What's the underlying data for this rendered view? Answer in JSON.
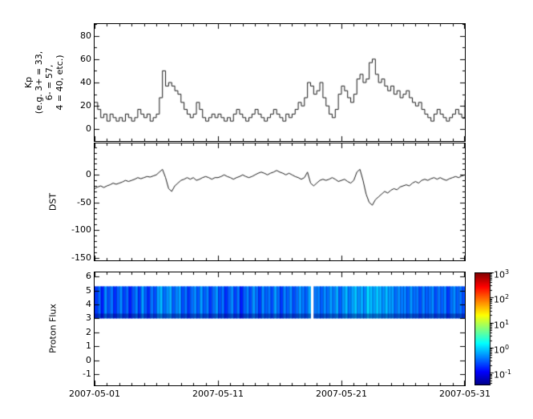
{
  "chart_data": {
    "x_axis": {
      "range_days": [
        1,
        31
      ],
      "tick_days": [
        1,
        11,
        21,
        31
      ],
      "tick_labels": [
        "2007-05-01",
        "2007-05-11",
        "2007-05-21",
        "2007-05-31"
      ],
      "minor_tick_every_days": 1,
      "sample_step_days": 0.25
    },
    "panels": [
      {
        "id": "kp",
        "type": "line",
        "line_style": "step",
        "ylabel": "Kp\n(e.g. 3+ = 33,\n6- = 57,\n4 = 40, etc.)",
        "ylim": [
          -10,
          90
        ],
        "yticks": [
          0,
          20,
          40,
          60,
          80
        ],
        "y_minor_step": 10,
        "line_color": "#1a1a1a",
        "values": [
          23,
          17,
          10,
          13,
          7,
          13,
          10,
          7,
          10,
          7,
          13,
          10,
          7,
          10,
          17,
          13,
          10,
          13,
          7,
          10,
          13,
          27,
          50,
          37,
          40,
          37,
          33,
          30,
          23,
          17,
          13,
          10,
          13,
          23,
          17,
          10,
          7,
          10,
          13,
          10,
          13,
          10,
          7,
          10,
          7,
          13,
          17,
          13,
          10,
          7,
          10,
          13,
          17,
          13,
          10,
          7,
          10,
          13,
          17,
          13,
          10,
          7,
          13,
          10,
          13,
          17,
          23,
          20,
          27,
          40,
          37,
          30,
          33,
          40,
          27,
          20,
          13,
          10,
          17,
          30,
          37,
          33,
          27,
          23,
          30,
          43,
          47,
          40,
          43,
          57,
          60,
          47,
          40,
          43,
          37,
          33,
          37,
          30,
          33,
          27,
          30,
          33,
          27,
          23,
          20,
          23,
          17,
          13,
          10,
          7,
          13,
          17,
          13,
          10,
          7,
          10,
          13,
          17,
          13,
          10,
          25
        ]
      },
      {
        "id": "dst",
        "type": "line",
        "line_style": "linear",
        "ylabel": "DST",
        "ylim": [
          -155,
          57
        ],
        "yticks": [
          0,
          -50,
          -100,
          -150
        ],
        "y_minor_step": 10,
        "line_color": "#1a1a1a",
        "values": [
          -25,
          -22,
          -20,
          -23,
          -20,
          -18,
          -15,
          -17,
          -15,
          -13,
          -10,
          -12,
          -10,
          -8,
          -5,
          -7,
          -5,
          -3,
          -4,
          -2,
          0,
          5,
          10,
          -5,
          -25,
          -30,
          -20,
          -15,
          -10,
          -8,
          -5,
          -8,
          -5,
          -10,
          -8,
          -5,
          -3,
          -5,
          -8,
          -5,
          -5,
          -3,
          0,
          -3,
          -5,
          -8,
          -5,
          -3,
          0,
          -3,
          -5,
          -3,
          0,
          3,
          5,
          3,
          0,
          3,
          5,
          8,
          5,
          3,
          0,
          3,
          0,
          -3,
          -5,
          -8,
          -5,
          5,
          -15,
          -20,
          -15,
          -10,
          -8,
          -10,
          -8,
          -5,
          -8,
          -12,
          -10,
          -8,
          -12,
          -15,
          -10,
          5,
          10,
          -10,
          -35,
          -50,
          -55,
          -45,
          -40,
          -35,
          -30,
          -33,
          -28,
          -25,
          -27,
          -22,
          -20,
          -18,
          -20,
          -15,
          -12,
          -15,
          -10,
          -8,
          -10,
          -7,
          -5,
          -8,
          -5,
          -8,
          -10,
          -7,
          -5,
          -3,
          -5,
          -2,
          0
        ]
      },
      {
        "id": "proton_flux",
        "type": "heatmap",
        "ylabel": "Proton Flux",
        "ylim": [
          -1.8,
          6.3
        ],
        "yticks": [
          6,
          5,
          4,
          3,
          2,
          1,
          0,
          -1
        ],
        "band_y": [
          3,
          5.3
        ],
        "colormap": "jet",
        "scale": "log",
        "clim": [
          0.0316,
          1000
        ],
        "gap_note": "white data gap near 2007-05-19",
        "values": [
          0.2,
          0.35,
          0.15,
          0.5,
          0.25,
          0.4,
          0.18,
          0.3,
          0.5,
          0.22,
          0.35,
          0.15,
          0.28,
          0.45,
          0.2,
          0.6,
          0.3,
          0.18,
          0.4,
          0.25,
          0.55,
          0.8,
          0.35,
          0.5,
          0.7,
          0.3,
          0.45,
          0.6,
          0.25,
          0.4,
          0.2,
          0.35,
          0.5,
          0.28,
          0.6,
          0.3,
          0.45,
          0.2,
          0.35,
          0.55,
          0.25,
          0.4,
          0.18,
          0.3,
          0.5,
          0.22,
          0.4,
          0.15,
          0.3,
          0.45,
          0.25,
          0.55,
          0.35,
          0.2,
          0.5,
          0.3,
          0.4,
          0.25,
          0.6,
          0.35,
          0.2,
          0.45,
          0.3,
          0.5,
          0.25,
          0.35,
          0.55,
          0.4,
          0.3,
          0.6,
          null,
          0.4,
          0.45,
          0.3,
          0.5,
          0.35,
          0.6,
          0.4,
          0.7,
          0.3,
          0.5,
          0.8,
          0.4,
          0.6,
          0.9,
          0.5,
          0.7,
          0.45,
          1.1,
          0.8,
          0.6,
          0.9,
          0.7,
          0.5,
          0.8,
          0.55,
          0.6,
          0.35,
          0.5,
          0.4,
          0.45,
          0.3,
          0.55,
          0.35,
          0.4,
          0.25,
          0.45,
          0.3,
          0.35,
          0.5,
          0.25,
          0.4,
          0.3,
          0.45,
          0.2,
          0.35,
          0.5,
          0.3,
          0.4,
          0.25,
          0.35
        ],
        "colorbar": {
          "base_label": "10",
          "tick_exponents": [
            3,
            2,
            1,
            0,
            -1
          ],
          "top_color": "#800000",
          "bottom_color": "#000080"
        }
      }
    ]
  }
}
